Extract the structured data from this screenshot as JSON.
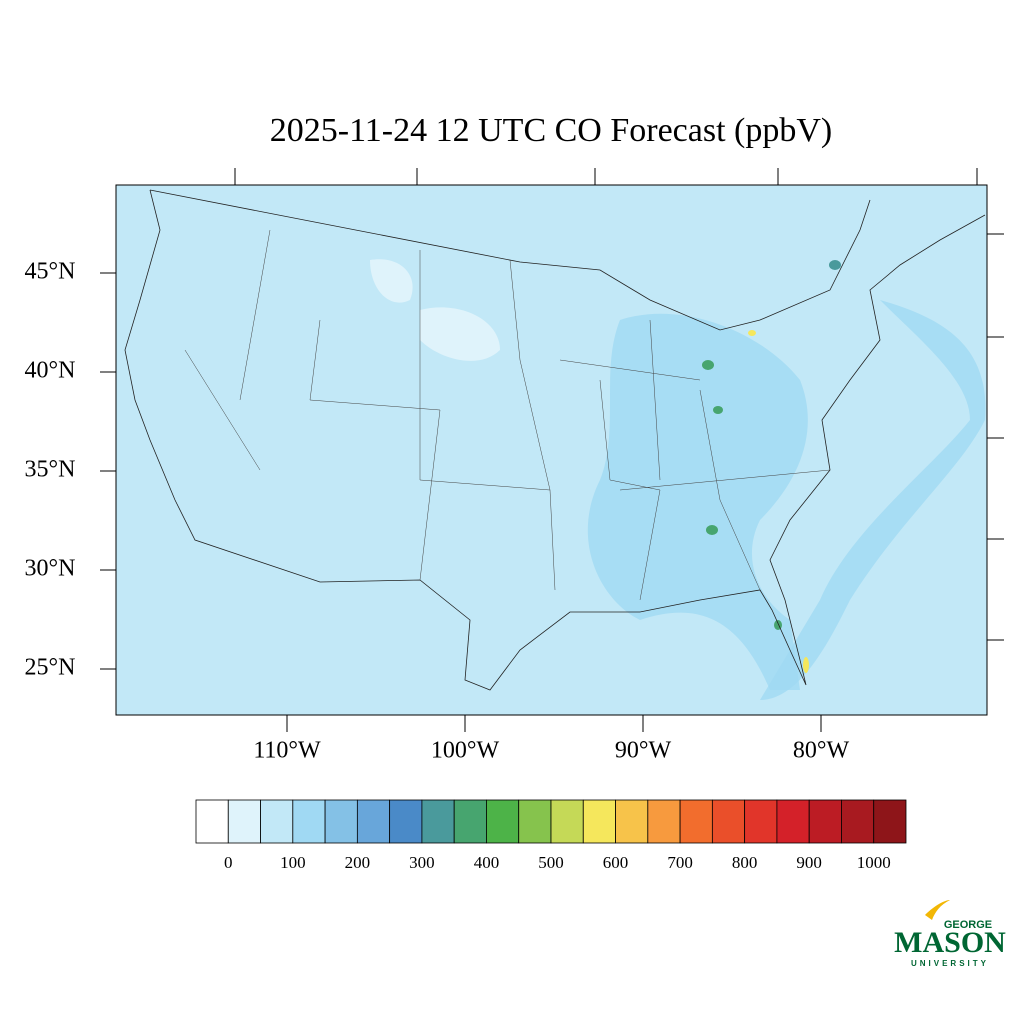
{
  "title": "2025-11-24 12 UTC CO Forecast (ppbV)",
  "map": {
    "lat_ticks": [
      {
        "value": 45,
        "label": "45°N"
      },
      {
        "value": 40,
        "label": "40°N"
      },
      {
        "value": 35,
        "label": "35°N"
      },
      {
        "value": 30,
        "label": "30°N"
      },
      {
        "value": 25,
        "label": "25°N"
      }
    ],
    "lon_ticks": [
      {
        "value": -110,
        "label": "110°W"
      },
      {
        "value": -100,
        "label": "100°W"
      },
      {
        "value": -90,
        "label": "90°W"
      },
      {
        "value": -80,
        "label": "80°W"
      }
    ]
  },
  "colorbar": {
    "colors": [
      "#ffffff",
      "#dff3fb",
      "#c2e8f7",
      "#a0d9f3",
      "#84c1e6",
      "#68a6da",
      "#4a8ac8",
      "#4a9a9c",
      "#47a56f",
      "#4db348",
      "#86c34d",
      "#c5d957",
      "#f5e75c",
      "#f7c34a",
      "#f79a3e",
      "#f26d2d",
      "#ea4f2a",
      "#e1352a",
      "#d42129",
      "#bc1c24",
      "#a81a20",
      "#8e1519"
    ],
    "labels": [
      0,
      100,
      200,
      300,
      400,
      500,
      600,
      700,
      800,
      900,
      1000
    ]
  },
  "logo": {
    "line1": "GEORGE",
    "line2": "MASON",
    "line3": "UNIVERSITY"
  }
}
